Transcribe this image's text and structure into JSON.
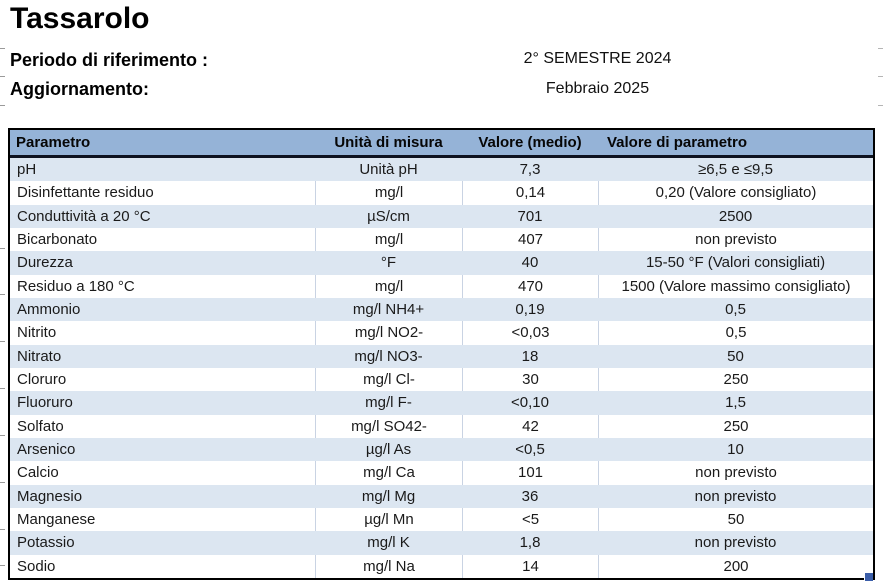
{
  "header": {
    "title": "Tassarolo",
    "period_label": "Periodo di riferimento :",
    "period_value": "2° SEMESTRE 2024",
    "update_label": "Aggiornamento:",
    "update_value": "Febbraio 2025"
  },
  "table": {
    "columns": [
      "Parametro",
      "Unità di misura",
      "Valore (medio)",
      "Valore di parametro"
    ],
    "rows": [
      [
        "pH",
        "Unità pH",
        "7,3",
        "≥6,5 e ≤9,5"
      ],
      [
        "Disinfettante residuo",
        "mg/l",
        "0,14",
        "0,20 (Valore consigliato)"
      ],
      [
        "Conduttività a 20 °C",
        "µS/cm",
        "701",
        "2500"
      ],
      [
        "Bicarbonato",
        "mg/l",
        "407",
        "non previsto"
      ],
      [
        "Durezza",
        "°F",
        "40",
        "15-50 °F (Valori consigliati)"
      ],
      [
        "Residuo a 180 °C",
        "mg/l",
        "470",
        "1500 (Valore massimo consigliato)"
      ],
      [
        "Ammonio",
        "mg/l NH4+",
        "0,19",
        "0,5"
      ],
      [
        "Nitrito",
        "mg/l NO2-",
        "<0,03",
        "0,5"
      ],
      [
        "Nitrato",
        "mg/l NO3-",
        "18",
        "50"
      ],
      [
        "Cloruro",
        "mg/l Cl-",
        "30",
        "250"
      ],
      [
        "Fluoruro",
        "mg/l F-",
        "<0,10",
        "1,5"
      ],
      [
        "Solfato",
        "mg/l SO42-",
        "42",
        "250"
      ],
      [
        "Arsenico",
        "µg/l As",
        "<0,5",
        "10"
      ],
      [
        "Calcio",
        "mg/l Ca",
        "101",
        "non previsto"
      ],
      [
        "Magnesio",
        "mg/l Mg",
        "36",
        "non previsto"
      ],
      [
        "Manganese",
        "µg/l Mn",
        "<5",
        "50"
      ],
      [
        "Potassio",
        "mg/l K",
        "1,8",
        "non previsto"
      ],
      [
        "Sodio",
        "mg/l Na",
        "14",
        "200"
      ]
    ],
    "colors": {
      "header_bg": "#95B3D7",
      "alt_row_bg": "#DCE6F1",
      "row_bg": "#FFFFFF",
      "outer_border": "#000000",
      "gridline": "#C9D3E3",
      "fill_handle": "#3B5EA9"
    }
  }
}
